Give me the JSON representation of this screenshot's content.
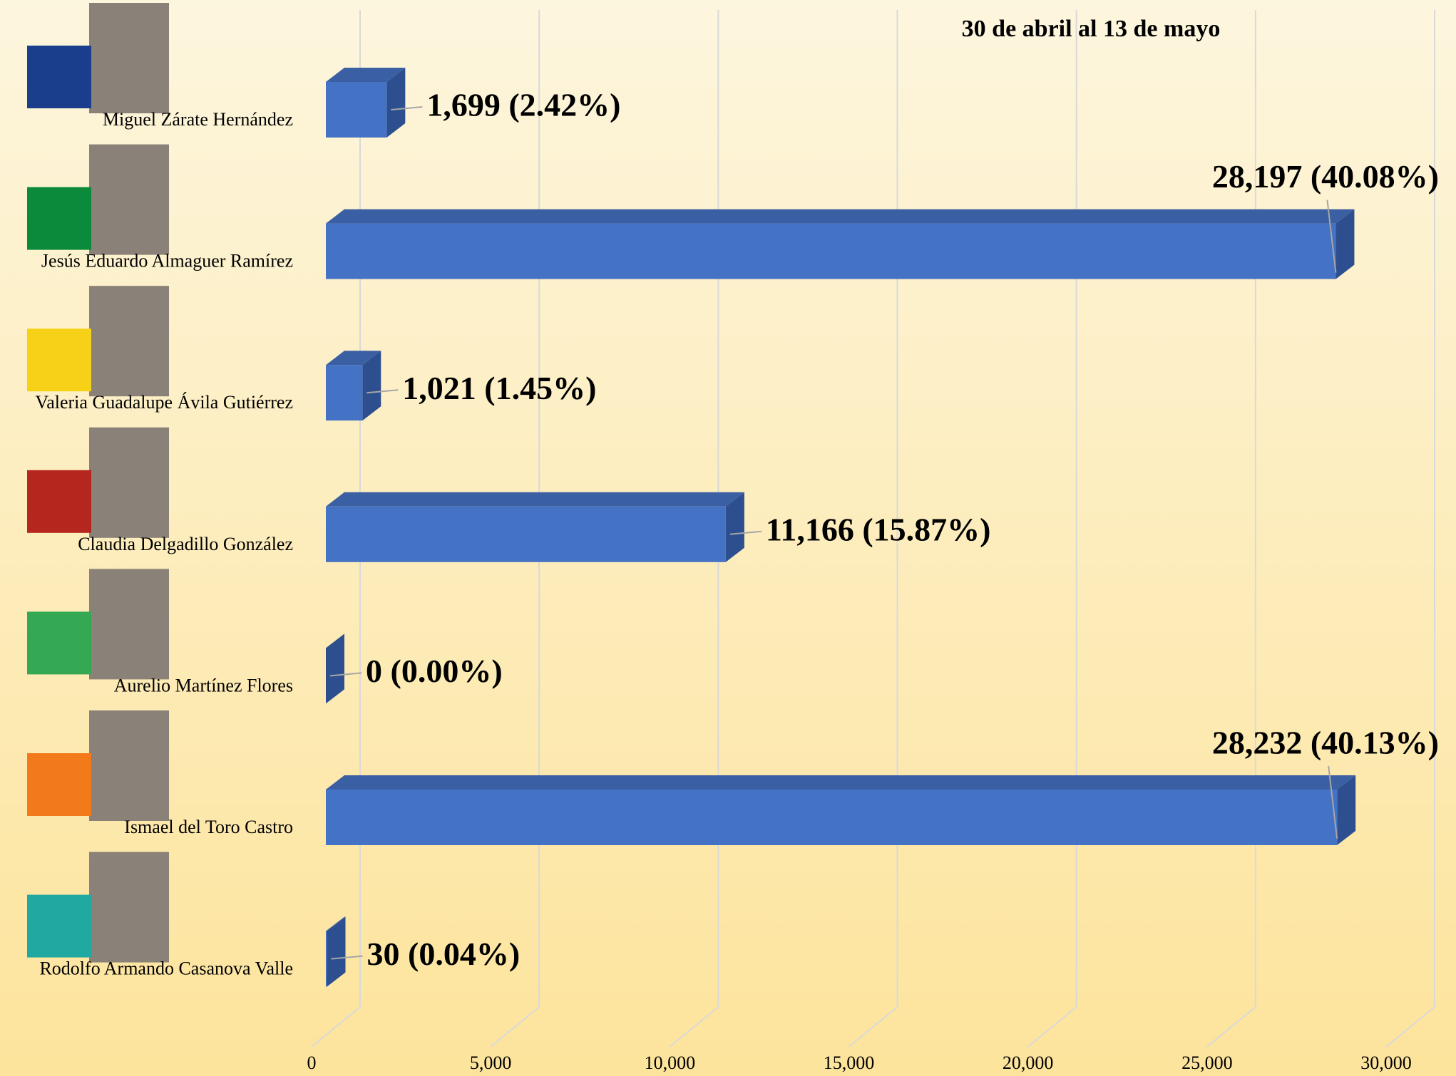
{
  "chart_data": {
    "type": "bar",
    "orientation": "horizontal",
    "subtitle": "30 de abril al 13 de mayo",
    "categories": [
      "Miguel Zárate Hernández",
      "Jesús Eduardo Almaguer Ramírez",
      "Valeria Guadalupe Ávila Gutiérrez",
      "Claudia Delgadillo González",
      "Aurelio Martínez Flores",
      "Ismael del Toro Castro",
      "Rodolfo Armando Casanova Valle"
    ],
    "values": [
      1699,
      28197,
      1021,
      11166,
      0,
      28232,
      30
    ],
    "value_labels": [
      "1,699 (2.42%)",
      "28,197 (40.08%)",
      "1,021 (1.45%)",
      "11,166 (15.87%)",
      "0 (0.00%)",
      "28,232 (40.13%)",
      "30 (0.04%)"
    ],
    "color": "#4472c4",
    "xlim": [
      0,
      30000
    ],
    "xticks": [
      0,
      {
        "value": 5000,
        "label": "5,000"
      },
      {
        "value": 10000,
        "label": "10,000"
      },
      {
        "value": 15000,
        "label": "15,000"
      },
      {
        "value": 20000,
        "label": "20,000"
      },
      {
        "value": 25000,
        "label": "25,000"
      },
      {
        "value": 30000,
        "label": "30,000"
      }
    ],
    "grid": true
  }
}
